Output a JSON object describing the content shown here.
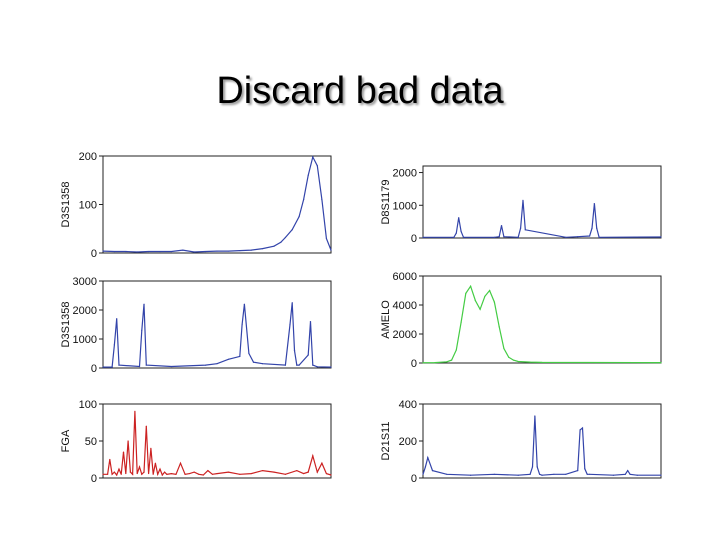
{
  "slide": {
    "title": "Discard bad data"
  },
  "chart_data": [
    {
      "type": "line",
      "ylabel": "D3S1358",
      "ylim": [
        0,
        200
      ],
      "yticks": [
        0,
        100,
        200
      ],
      "color": "#3344aa",
      "x": [
        0,
        0.05,
        0.1,
        0.15,
        0.2,
        0.25,
        0.3,
        0.35,
        0.4,
        0.45,
        0.5,
        0.55,
        0.6,
        0.65,
        0.7,
        0.75,
        0.78,
        0.8,
        0.83,
        0.86,
        0.88,
        0.9,
        0.92,
        0.94,
        0.96,
        0.98,
        1
      ],
      "values": [
        4,
        3,
        3,
        2,
        3,
        3,
        3,
        6,
        2,
        3,
        4,
        4,
        5,
        6,
        9,
        14,
        22,
        32,
        48,
        75,
        110,
        160,
        198,
        180,
        110,
        30,
        6
      ]
    },
    {
      "type": "line",
      "ylabel": "D8S1179",
      "ylim": [
        0,
        2200
      ],
      "yticks": [
        0,
        1000,
        2000
      ],
      "color": "#3344aa",
      "x": [
        0,
        0.13,
        0.14,
        0.15,
        0.16,
        0.17,
        0.3,
        0.32,
        0.33,
        0.34,
        0.4,
        0.41,
        0.42,
        0.43,
        0.6,
        0.65,
        0.7,
        0.71,
        0.72,
        0.73,
        0.74,
        1
      ],
      "values": [
        20,
        20,
        150,
        620,
        200,
        20,
        20,
        40,
        380,
        40,
        20,
        300,
        1150,
        250,
        20,
        40,
        60,
        300,
        1050,
        300,
        20,
        30
      ]
    },
    {
      "type": "line",
      "ylabel": "D3S1358",
      "ylim": [
        0,
        3000
      ],
      "yticks": [
        0,
        1000,
        2000,
        3000
      ],
      "color": "#3344aa",
      "x": [
        0,
        0.04,
        0.05,
        0.06,
        0.07,
        0.16,
        0.17,
        0.18,
        0.19,
        0.3,
        0.45,
        0.5,
        0.55,
        0.6,
        0.61,
        0.62,
        0.64,
        0.66,
        0.7,
        0.8,
        0.82,
        0.83,
        0.84,
        0.85,
        0.86,
        0.9,
        0.91,
        0.92,
        0.94,
        1
      ],
      "values": [
        30,
        30,
        800,
        1700,
        100,
        50,
        1300,
        2200,
        100,
        50,
        100,
        150,
        300,
        400,
        1500,
        2200,
        500,
        200,
        150,
        100,
        1500,
        2250,
        600,
        100,
        100,
        450,
        1600,
        100,
        40,
        30
      ]
    },
    {
      "type": "line",
      "ylabel": "AMELO",
      "ylim": [
        0,
        6000
      ],
      "yticks": [
        0,
        2000,
        4000,
        6000
      ],
      "color": "#44cc44",
      "x": [
        0,
        0.05,
        0.1,
        0.12,
        0.14,
        0.16,
        0.18,
        0.2,
        0.22,
        0.24,
        0.26,
        0.28,
        0.3,
        0.32,
        0.34,
        0.36,
        0.38,
        0.4,
        0.45,
        0.5,
        1
      ],
      "values": [
        20,
        30,
        80,
        200,
        900,
        2800,
        4800,
        5300,
        4300,
        3700,
        4600,
        5000,
        4200,
        2500,
        1000,
        400,
        200,
        100,
        60,
        40,
        30
      ]
    },
    {
      "type": "line",
      "ylabel": "FGA",
      "ylim": [
        0,
        100
      ],
      "yticks": [
        0,
        50,
        100
      ],
      "color": "#cc2222",
      "x": [
        0,
        0.02,
        0.03,
        0.04,
        0.05,
        0.06,
        0.07,
        0.08,
        0.09,
        0.1,
        0.11,
        0.12,
        0.13,
        0.14,
        0.15,
        0.16,
        0.17,
        0.18,
        0.19,
        0.2,
        0.21,
        0.22,
        0.23,
        0.24,
        0.25,
        0.26,
        0.27,
        0.28,
        0.3,
        0.32,
        0.34,
        0.36,
        0.38,
        0.4,
        0.42,
        0.44,
        0.46,
        0.48,
        0.5,
        0.55,
        0.6,
        0.65,
        0.7,
        0.75,
        0.8,
        0.85,
        0.88,
        0.9,
        0.92,
        0.94,
        0.96,
        0.98,
        1
      ],
      "values": [
        5,
        5,
        25,
        5,
        8,
        4,
        12,
        5,
        35,
        6,
        50,
        8,
        5,
        90,
        6,
        15,
        5,
        8,
        70,
        6,
        40,
        5,
        20,
        5,
        12,
        4,
        8,
        5,
        6,
        5,
        20,
        5,
        6,
        8,
        5,
        4,
        10,
        5,
        6,
        8,
        5,
        6,
        10,
        8,
        5,
        10,
        6,
        8,
        30,
        8,
        20,
        6,
        4
      ]
    },
    {
      "type": "line",
      "ylabel": "D21S11",
      "ylim": [
        0,
        400
      ],
      "yticks": [
        0,
        200,
        400
      ],
      "color": "#3344aa",
      "x": [
        0,
        0.01,
        0.02,
        0.04,
        0.1,
        0.2,
        0.3,
        0.4,
        0.45,
        0.46,
        0.47,
        0.48,
        0.49,
        0.5,
        0.55,
        0.6,
        0.65,
        0.66,
        0.67,
        0.68,
        0.69,
        0.7,
        0.8,
        0.85,
        0.86,
        0.87,
        0.9,
        1
      ],
      "values": [
        20,
        60,
        110,
        40,
        20,
        15,
        20,
        15,
        20,
        60,
        335,
        60,
        20,
        15,
        20,
        20,
        40,
        260,
        270,
        50,
        20,
        20,
        15,
        20,
        40,
        20,
        15,
        15
      ]
    }
  ]
}
